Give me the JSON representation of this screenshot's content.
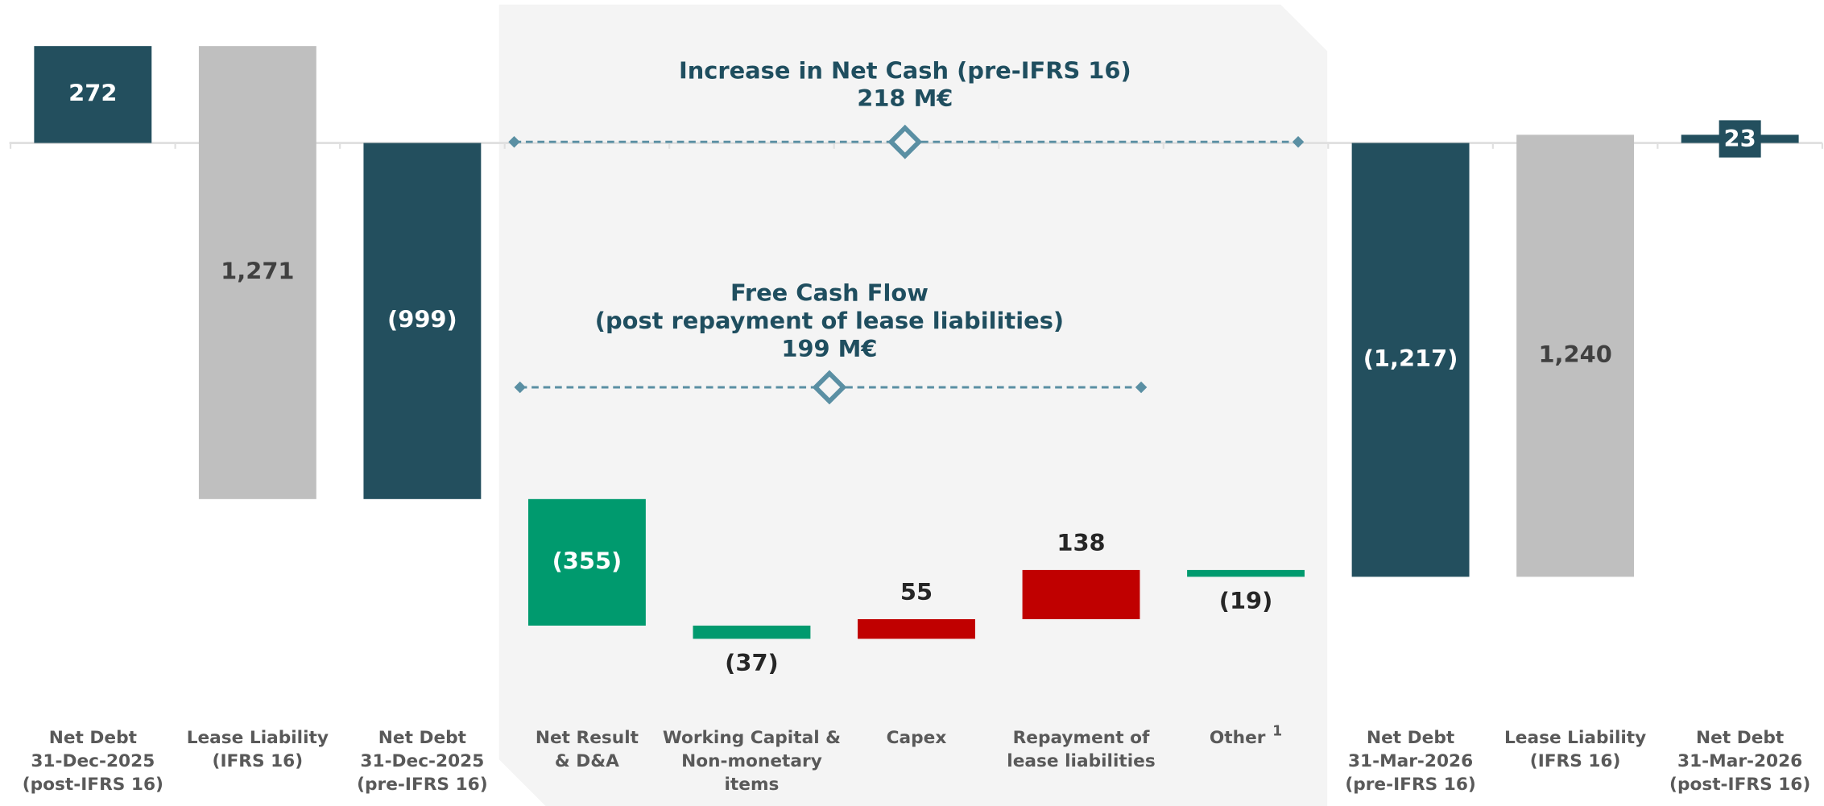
{
  "chart_data": {
    "type": "waterfall",
    "categories": [
      [
        "Net Debt",
        "31-Dec-2025",
        "(post-IFRS 16)"
      ],
      [
        "Lease Liability",
        "(IFRS 16)"
      ],
      [
        "Net Debt",
        "31-Dec-2025",
        "(pre-IFRS 16)"
      ],
      [
        "Net Result",
        "& D&A"
      ],
      [
        "Working Capital &",
        "Non-monetary",
        "items"
      ],
      [
        "Capex"
      ],
      [
        "Repayment of",
        "lease liabilities"
      ],
      [
        "Other"
      ],
      [
        "Net Debt",
        "31-Mar-2026",
        "(pre-IFRS 16)"
      ],
      [
        "Lease Liability",
        "(IFRS 16)"
      ],
      [
        "Net Debt",
        "31-Mar-2026",
        "(post-IFRS 16)"
      ]
    ],
    "category_superscripts": {
      "7": "1"
    },
    "values": [
      272,
      -1271,
      -999,
      -355,
      -37,
      55,
      138,
      -19,
      -1217,
      1240,
      23
    ],
    "value_labels": [
      "272",
      "1,271",
      "(999)",
      "(355)",
      "(37)",
      "55",
      "138",
      "(19)",
      "(1,217)",
      "1,240",
      "23"
    ],
    "kinds": [
      "total",
      "delta",
      "total",
      "delta",
      "delta",
      "delta",
      "delta",
      "delta",
      "total",
      "delta",
      "total"
    ],
    "colors": [
      "#234f5e",
      "#bfbfbf",
      "#234f5e",
      "#009a6e",
      "#009a6e",
      "#c00000",
      "#c00000",
      "#009a6e",
      "#234f5e",
      "#bfbfbf",
      "#234f5e"
    ],
    "ylim": [
      -1400,
      300
    ],
    "annotations": [
      {
        "lines": [
          "Increase in Net Cash (pre-IFRS 16)",
          "218 M€"
        ]
      },
      {
        "lines": [
          "Free Cash Flow",
          "(post repayment of lease liabilities)",
          "199 M€"
        ]
      }
    ]
  }
}
